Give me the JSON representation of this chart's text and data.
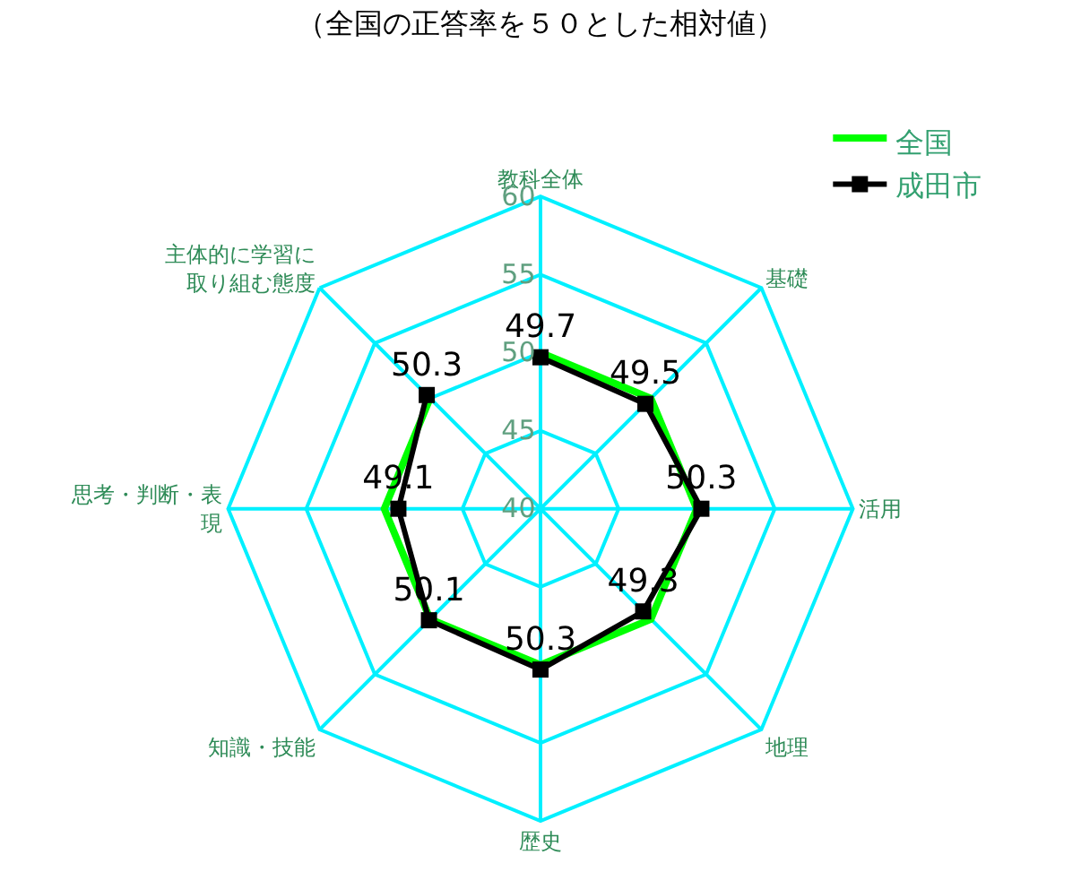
{
  "chart_data": {
    "type": "radar",
    "title": "（全国の正答率を５０とした相対値）",
    "categories": [
      "教科全体",
      "基礎",
      "活用",
      "地理",
      "歴史",
      "知識・技能",
      "思考・判断・表現",
      "主体的に学習に取り組む態度"
    ],
    "series": [
      {
        "name": "全国",
        "color": "#00ff00",
        "marker": "none",
        "values": [
          50,
          50,
          50,
          50,
          50,
          50,
          50,
          50
        ]
      },
      {
        "name": "成田市",
        "color": "#000000",
        "marker": "square",
        "data_labels": true,
        "values": [
          49.7,
          49.5,
          50.3,
          49.3,
          50.3,
          50.1,
          49.1,
          50.3
        ]
      }
    ],
    "ylim": [
      40,
      60
    ],
    "yticks": [
      40,
      45,
      50,
      55,
      60
    ],
    "grid": true,
    "legend": "top right"
  }
}
